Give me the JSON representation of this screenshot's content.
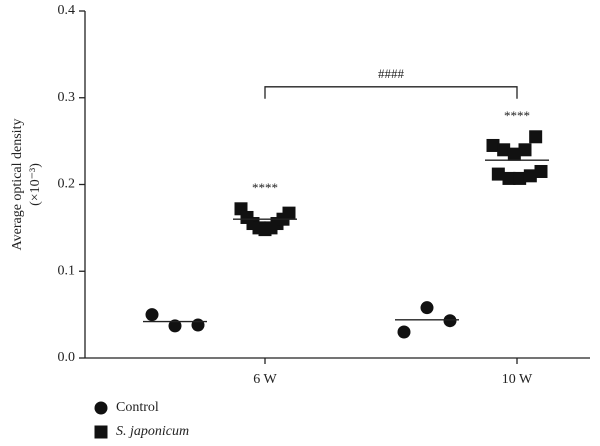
{
  "chart_data": {
    "type": "dotplot",
    "ylabel": [
      "Average optical density",
      "(×10⁻³)"
    ],
    "categories": [
      "6 W",
      "10 W"
    ],
    "ylim": [
      0,
      0.4
    ],
    "yticks": [
      {
        "value": 0,
        "label": "0.0"
      },
      0.1,
      0.2,
      0.3,
      0.4
    ],
    "series": [
      {
        "name": "Control",
        "marker": "circle",
        "color": "#111",
        "values": [
          [
            0.05,
            0.037,
            0.038
          ],
          [
            0.03,
            0.058,
            0.043
          ]
        ],
        "means": [
          0.042,
          0.044
        ]
      },
      {
        "name": "S. japonicum",
        "marker": "square",
        "color": "#111",
        "values": [
          [
            0.172,
            0.162,
            0.155,
            0.15,
            0.148,
            0.15,
            0.155,
            0.16,
            0.167
          ],
          [
            0.245,
            0.212,
            0.24,
            0.207,
            0.235,
            0.207,
            0.24,
            0.21,
            0.255,
            0.215
          ]
        ],
        "means": [
          0.16,
          0.228
        ]
      }
    ],
    "annotations": [
      "****",
      "****"
    ],
    "comparison": "####"
  }
}
